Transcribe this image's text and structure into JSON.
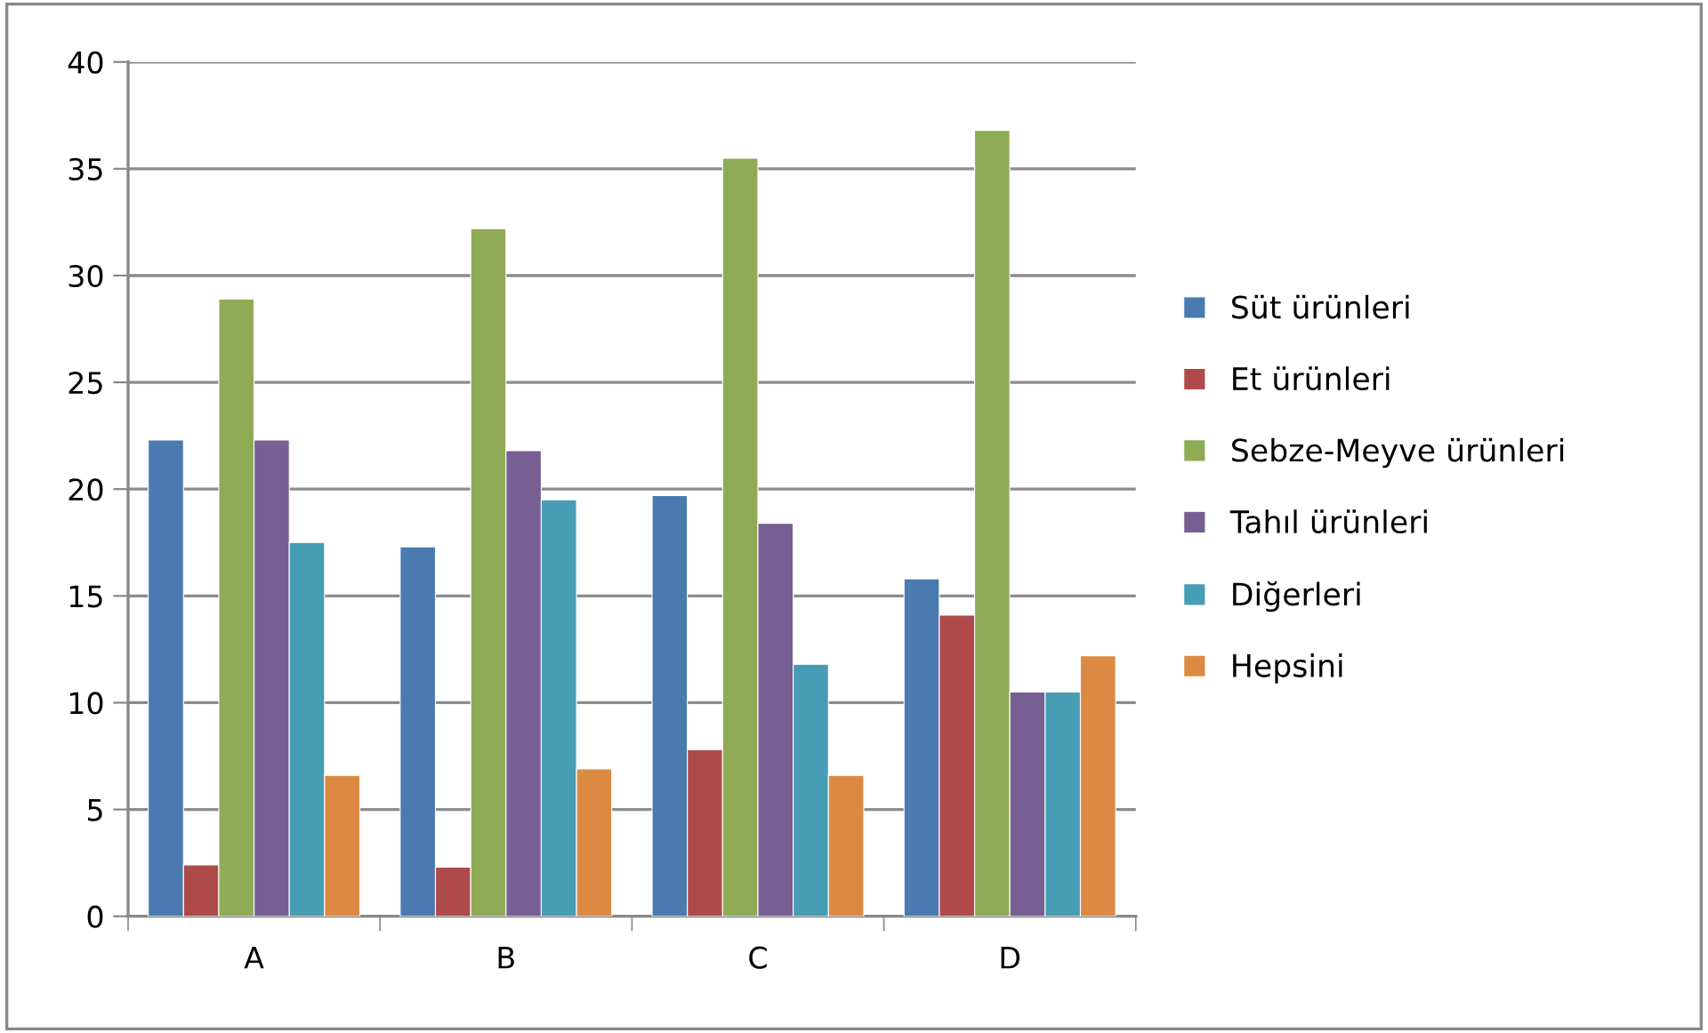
{
  "chart_data": {
    "type": "bar",
    "categories": [
      "A",
      "B",
      "C",
      "D"
    ],
    "series": [
      {
        "name": "Süt ürünleri",
        "color": "#4a7ab0",
        "values": [
          22.3,
          17.3,
          19.7,
          15.8
        ]
      },
      {
        "name": "Et ürünleri",
        "color": "#ae4b4a",
        "values": [
          2.4,
          2.3,
          7.8,
          14.1
        ]
      },
      {
        "name": "Sebze-Meyve ürünleri",
        "color": "#90ab55",
        "values": [
          28.9,
          32.2,
          35.5,
          36.8
        ]
      },
      {
        "name": "Tahıl ürünleri",
        "color": "#775f93",
        "values": [
          22.3,
          21.8,
          18.4,
          10.5
        ]
      },
      {
        "name": "Diğerleri",
        "color": "#479db4",
        "values": [
          17.5,
          19.5,
          11.8,
          10.5
        ]
      },
      {
        "name": "Hepsini",
        "color": "#dc8a43",
        "values": [
          6.6,
          6.9,
          6.6,
          12.2
        ]
      }
    ],
    "ylim": [
      0,
      40
    ],
    "yticks": [
      0,
      5,
      10,
      15,
      20,
      25,
      30,
      35,
      40
    ],
    "grid": "y",
    "legend": "right"
  }
}
